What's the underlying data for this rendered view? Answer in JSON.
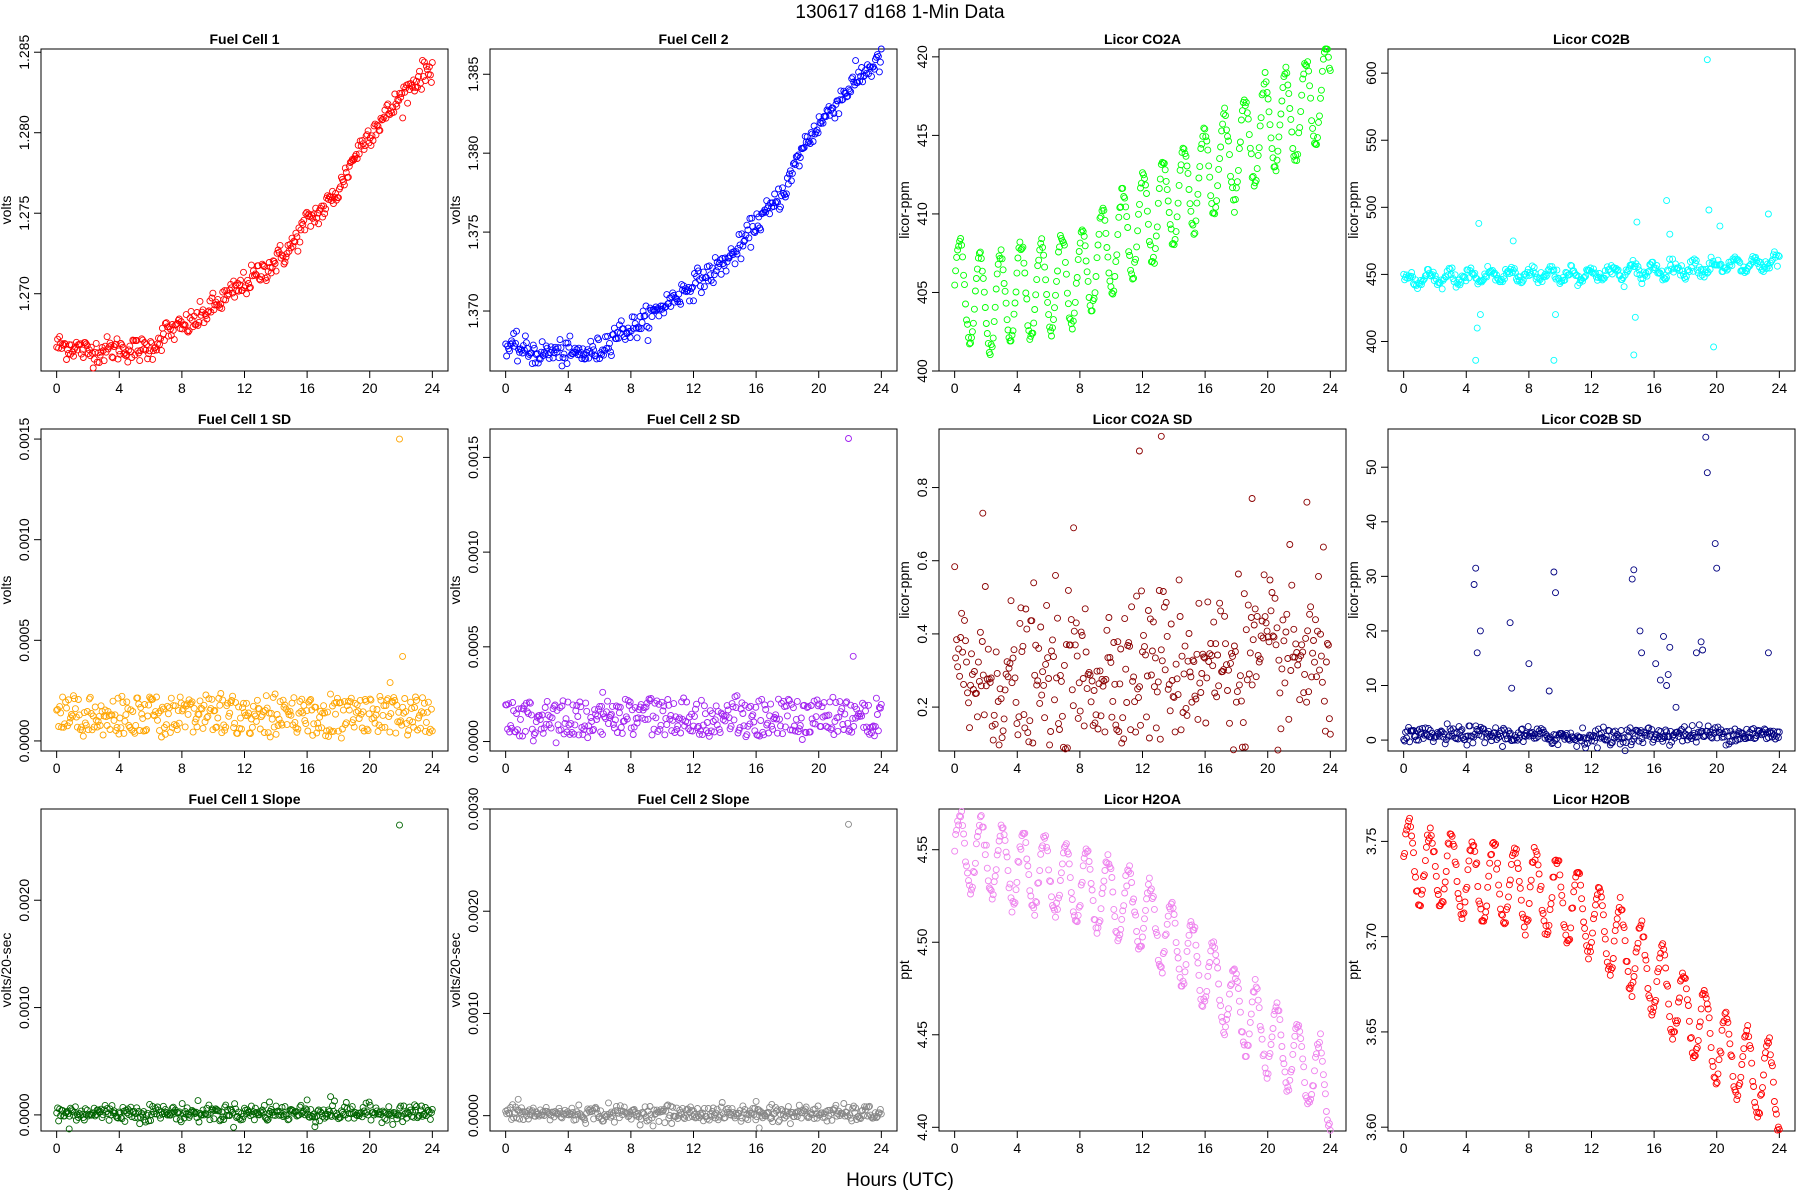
{
  "page": {
    "title": "130617   d168   1-Min Data",
    "xlabel": "Hours (UTC)"
  },
  "chart_data": [
    {
      "type": "scatter",
      "title": "Fuel Cell 1",
      "ylabel": "volts",
      "color": "#ff0000",
      "xlim": [
        -1,
        25
      ],
      "ylim": [
        1.2652,
        1.2852
      ],
      "yticks": [
        1.27,
        1.275,
        1.28,
        1.285
      ],
      "ytick_labels": [
        "1.270",
        "1.275",
        "1.280",
        "1.285"
      ],
      "xticks": [
        0,
        4,
        8,
        12,
        16,
        20,
        24
      ],
      "xtick_labels": [
        "0",
        "4",
        "8",
        "12",
        "16",
        "20",
        "24"
      ],
      "x": [
        0,
        1,
        2,
        3,
        4,
        5,
        6,
        7,
        8,
        9,
        10,
        11,
        12,
        13,
        14,
        15,
        16,
        17,
        18,
        19,
        20,
        21,
        22,
        23,
        24
      ],
      "y": [
        1.2668,
        1.2667,
        1.2664,
        1.2665,
        1.2666,
        1.2665,
        1.2666,
        1.2676,
        1.2679,
        1.2684,
        1.2692,
        1.2699,
        1.2706,
        1.2713,
        1.272,
        1.2729,
        1.2745,
        1.2752,
        1.2764,
        1.2785,
        1.28,
        1.281,
        1.2822,
        1.2833,
        1.2841
      ],
      "noise": 0.0004,
      "outliers": []
    },
    {
      "type": "scatter",
      "title": "Fuel Cell 2",
      "ylabel": "volts",
      "color": "#0000ff",
      "xlim": [
        -1,
        25
      ],
      "ylim": [
        1.3662,
        1.3866
      ],
      "yticks": [
        1.37,
        1.375,
        1.38,
        1.385
      ],
      "ytick_labels": [
        "1.370",
        "1.375",
        "1.380",
        "1.385"
      ],
      "xticks": [
        0,
        4,
        8,
        12,
        16,
        20,
        24
      ],
      "xtick_labels": [
        "0",
        "4",
        "8",
        "12",
        "16",
        "20",
        "24"
      ],
      "x": [
        0,
        1,
        2,
        3,
        4,
        5,
        6,
        7,
        8,
        9,
        10,
        11,
        12,
        13,
        14,
        15,
        16,
        17,
        18,
        19,
        20,
        21,
        22,
        23,
        24
      ],
      "y": [
        1.3677,
        1.3676,
        1.3673,
        1.3674,
        1.3673,
        1.3673,
        1.3675,
        1.3686,
        1.3689,
        1.3694,
        1.3703,
        1.371,
        1.3717,
        1.3723,
        1.3731,
        1.374,
        1.3756,
        1.3765,
        1.378,
        1.3804,
        1.3818,
        1.383,
        1.3842,
        1.3852,
        1.3859
      ],
      "noise": 0.0004,
      "outliers": []
    },
    {
      "type": "scatter",
      "title": "Licor CO2A",
      "ylabel": "licor-ppm",
      "color": "#00ff00",
      "xlim": [
        -1,
        25
      ],
      "ylim": [
        400,
        420.5
      ],
      "yticks": [
        400,
        405,
        410,
        415,
        420
      ],
      "ytick_labels": [
        "400",
        "405",
        "410",
        "415",
        "420"
      ],
      "xticks": [
        0,
        4,
        8,
        12,
        16,
        20,
        24
      ],
      "xtick_labels": [
        "0",
        "4",
        "8",
        "12",
        "16",
        "20",
        "24"
      ],
      "x": [
        0,
        2,
        4,
        6,
        8,
        10,
        12,
        14,
        16,
        18,
        20,
        22,
        24
      ],
      "y": [
        405.5,
        404.0,
        405.0,
        405.3,
        406.0,
        408.0,
        409.5,
        411.0,
        412.5,
        414.0,
        415.5,
        416.5,
        418.0
      ],
      "osc_amp": 3.0,
      "osc_period": 1.3,
      "noise": 0.2,
      "outliers": []
    },
    {
      "type": "scatter",
      "title": "Licor CO2B",
      "ylabel": "licor-ppm",
      "color": "#00ffff",
      "xlim": [
        -1,
        25
      ],
      "ylim": [
        378,
        618
      ],
      "yticks": [
        400,
        450,
        500,
        550,
        600
      ],
      "ytick_labels": [
        "400",
        "450",
        "500",
        "550",
        "600"
      ],
      "xticks": [
        0,
        4,
        8,
        12,
        16,
        20,
        24
      ],
      "xtick_labels": [
        "0",
        "4",
        "8",
        "12",
        "16",
        "20",
        "24"
      ],
      "x": [
        0,
        4,
        8,
        12,
        16,
        20,
        24
      ],
      "y": [
        445,
        448,
        450,
        450,
        453,
        456,
        458
      ],
      "osc_amp": 4,
      "osc_period": 1.3,
      "noise": 2.5,
      "outliers": [
        [
          4.6,
          386
        ],
        [
          4.7,
          410
        ],
        [
          4.8,
          488
        ],
        [
          4.9,
          420
        ],
        [
          7.0,
          475
        ],
        [
          9.6,
          386
        ],
        [
          9.7,
          420
        ],
        [
          14.7,
          390
        ],
        [
          14.8,
          418
        ],
        [
          14.9,
          489
        ],
        [
          16.8,
          505
        ],
        [
          17.0,
          480
        ],
        [
          19.4,
          610
        ],
        [
          19.5,
          498
        ],
        [
          19.8,
          396
        ],
        [
          20.2,
          486
        ],
        [
          23.3,
          495
        ]
      ]
    },
    {
      "type": "scatter",
      "title": "Fuel Cell 1 SD",
      "ylabel": "volts",
      "color": "#ffa500",
      "xlim": [
        -1,
        25
      ],
      "ylim": [
        -5e-05,
        0.00155
      ],
      "yticks": [
        0.0,
        0.0005,
        0.001,
        0.0015
      ],
      "ytick_labels": [
        "0.0000",
        "0.0005",
        "0.0010",
        "0.0015"
      ],
      "xticks": [
        0,
        4,
        8,
        12,
        16,
        20,
        24
      ],
      "xtick_labels": [
        "0",
        "4",
        "8",
        "12",
        "16",
        "20",
        "24"
      ],
      "bands": [
        6e-05,
        0.00013,
        0.00019
      ],
      "noise": 2e-05,
      "outliers": [
        [
          21.9,
          0.0015
        ],
        [
          22.1,
          0.00042
        ],
        [
          21.3,
          0.00029
        ]
      ]
    },
    {
      "type": "scatter",
      "title": "Fuel Cell 2 SD",
      "ylabel": "volts",
      "color": "#a020f0",
      "xlim": [
        -1,
        25
      ],
      "ylim": [
        -5e-05,
        0.00165
      ],
      "yticks": [
        0.0,
        0.0005,
        0.001,
        0.0015
      ],
      "ytick_labels": [
        "0.0000",
        "0.0005",
        "0.0010",
        "0.0015"
      ],
      "xticks": [
        0,
        4,
        8,
        12,
        16,
        20,
        24
      ],
      "xtick_labels": [
        "0",
        "4",
        "8",
        "12",
        "16",
        "20",
        "24"
      ],
      "bands": [
        6e-05,
        0.00013,
        0.00019
      ],
      "noise": 2e-05,
      "outliers": [
        [
          21.9,
          0.0016
        ],
        [
          22.2,
          0.00045
        ],
        [
          6.2,
          0.00026
        ]
      ]
    },
    {
      "type": "scatter",
      "title": "Licor CO2A SD",
      "ylabel": "licor-ppm",
      "color": "#8b0000",
      "xlim": [
        -1,
        25
      ],
      "ylim": [
        0.08,
        0.96
      ],
      "yticks": [
        0.2,
        0.4,
        0.6,
        0.8
      ],
      "ytick_labels": [
        "0.2",
        "0.4",
        "0.6",
        "0.8"
      ],
      "xticks": [
        0,
        4,
        8,
        12,
        16,
        20,
        24
      ],
      "xtick_labels": [
        "0",
        "4",
        "8",
        "12",
        "16",
        "20",
        "24"
      ],
      "x": [
        0,
        4,
        8,
        12,
        16,
        20,
        24
      ],
      "y": [
        0.3,
        0.26,
        0.28,
        0.31,
        0.32,
        0.33,
        0.33
      ],
      "noise": 0.11,
      "outliers": [
        [
          11.8,
          0.9
        ],
        [
          13.2,
          0.94
        ],
        [
          19.0,
          0.77
        ],
        [
          22.5,
          0.76
        ],
        [
          1.8,
          0.73
        ],
        [
          7.6,
          0.69
        ]
      ]
    },
    {
      "type": "scatter",
      "title": "Licor CO2B SD",
      "ylabel": "licor-ppm",
      "color": "#000080",
      "xlim": [
        -1,
        25
      ],
      "ylim": [
        -2,
        57
      ],
      "yticks": [
        0,
        10,
        20,
        30,
        40,
        50
      ],
      "ytick_labels": [
        "0",
        "10",
        "20",
        "30",
        "40",
        "50"
      ],
      "xticks": [
        0,
        4,
        8,
        12,
        16,
        20,
        24
      ],
      "xtick_labels": [
        "0",
        "4",
        "8",
        "12",
        "16",
        "20",
        "24"
      ],
      "x": [
        0,
        4,
        8,
        12,
        16,
        20,
        24
      ],
      "y": [
        0.6,
        1.0,
        0.8,
        0.5,
        0.9,
        1.2,
        1.0
      ],
      "noise": 0.8,
      "outliers": [
        [
          19.3,
          55.5
        ],
        [
          19.4,
          49
        ],
        [
          19.9,
          36
        ],
        [
          20.0,
          31.5
        ],
        [
          4.6,
          31.5
        ],
        [
          4.5,
          28.5
        ],
        [
          4.9,
          20
        ],
        [
          4.7,
          16
        ],
        [
          6.8,
          21.5
        ],
        [
          6.9,
          9.5
        ],
        [
          9.6,
          30.8
        ],
        [
          9.7,
          27
        ],
        [
          8.0,
          14
        ],
        [
          9.3,
          9
        ],
        [
          14.7,
          31.2
        ],
        [
          14.6,
          29.5
        ],
        [
          15.1,
          20
        ],
        [
          15.2,
          16
        ],
        [
          16.6,
          19
        ],
        [
          17.0,
          17
        ],
        [
          16.4,
          11
        ],
        [
          16.8,
          10
        ],
        [
          17.4,
          6
        ],
        [
          19.0,
          18
        ],
        [
          19.1,
          16.5
        ],
        [
          23.3,
          16
        ],
        [
          18.7,
          16
        ],
        [
          16.1,
          14
        ],
        [
          16.9,
          12
        ]
      ]
    },
    {
      "type": "scatter",
      "title": "Fuel Cell 1 Slope",
      "ylabel": "volts/20-sec",
      "color": "#006400",
      "xlim": [
        -1,
        25
      ],
      "ylim": [
        -0.00015,
        0.00285
      ],
      "yticks": [
        0.0,
        0.001,
        0.002
      ],
      "ytick_labels": [
        "0.0000",
        "0.0010",
        "0.0020"
      ],
      "xticks": [
        0,
        4,
        8,
        12,
        16,
        20,
        24
      ],
      "xtick_labels": [
        "0",
        "4",
        "8",
        "12",
        "16",
        "20",
        "24"
      ],
      "x": [
        0,
        24
      ],
      "y": [
        2e-05,
        2e-05
      ],
      "noise": 4e-05,
      "outliers": [
        [
          21.9,
          0.0027
        ],
        [
          16.0,
          0.00014
        ],
        [
          17.5,
          0.00017
        ],
        [
          13.6,
          0.00012
        ],
        [
          0.8,
          -0.00013
        ],
        [
          16.5,
          -0.00011
        ]
      ]
    },
    {
      "type": "scatter",
      "title": "Fuel Cell 2 Slope",
      "ylabel": "volts/20-sec",
      "color": "#888888",
      "xlim": [
        -1,
        25
      ],
      "ylim": [
        -0.00015,
        0.003
      ],
      "yticks": [
        0.0,
        0.001,
        0.002,
        0.003
      ],
      "ytick_labels": [
        "0.0000",
        "0.0010",
        "0.0020",
        "0.0030"
      ],
      "xticks": [
        0,
        4,
        8,
        12,
        16,
        20,
        24
      ],
      "xtick_labels": [
        "0",
        "4",
        "8",
        "12",
        "16",
        "20",
        "24"
      ],
      "x": [
        0,
        24
      ],
      "y": [
        2e-05,
        2e-05
      ],
      "noise": 4e-05,
      "outliers": [
        [
          21.9,
          0.00285
        ],
        [
          16.0,
          0.00014
        ],
        [
          17.0,
          0.00011
        ],
        [
          0.8,
          0.00016
        ],
        [
          16.2,
          -0.00012
        ]
      ]
    },
    {
      "type": "scatter",
      "title": "Licor H2OA",
      "ylabel": "ppt",
      "color": "#ee82ee",
      "xlim": [
        -1,
        25
      ],
      "ylim": [
        4.398,
        4.572
      ],
      "yticks": [
        4.4,
        4.45,
        4.5,
        4.55
      ],
      "ytick_labels": [
        "4.40",
        "4.45",
        "4.50",
        "4.55"
      ],
      "xticks": [
        0,
        4,
        8,
        12,
        16,
        20,
        24
      ],
      "xtick_labels": [
        "0",
        "4",
        "8",
        "12",
        "16",
        "20",
        "24"
      ],
      "x": [
        0,
        4,
        8,
        10,
        12,
        14,
        16,
        18,
        20,
        22,
        24
      ],
      "y": [
        4.55,
        4.54,
        4.53,
        4.525,
        4.515,
        4.5,
        4.485,
        4.465,
        4.45,
        4.435,
        4.42
      ],
      "osc_amp": 0.02,
      "osc_period": 1.35,
      "noise": 0.002,
      "outliers": []
    },
    {
      "type": "scatter",
      "title": "Licor H2OB",
      "ylabel": "ppt",
      "color": "#ff0000",
      "xlim": [
        -1,
        25
      ],
      "ylim": [
        3.598,
        3.767
      ],
      "yticks": [
        3.6,
        3.65,
        3.7,
        3.75
      ],
      "ytick_labels": [
        "3.60",
        "3.65",
        "3.70",
        "3.75"
      ],
      "xticks": [
        0,
        4,
        8,
        12,
        16,
        20,
        24
      ],
      "xtick_labels": [
        "0",
        "4",
        "8",
        "12",
        "16",
        "20",
        "24"
      ],
      "x": [
        0,
        4,
        8,
        10,
        12,
        14,
        16,
        18,
        20,
        22,
        24
      ],
      "y": [
        3.74,
        3.73,
        3.725,
        3.72,
        3.71,
        3.695,
        3.68,
        3.66,
        3.645,
        3.63,
        3.62
      ],
      "osc_amp": 0.02,
      "osc_period": 1.35,
      "noise": 0.002,
      "outliers": []
    }
  ]
}
